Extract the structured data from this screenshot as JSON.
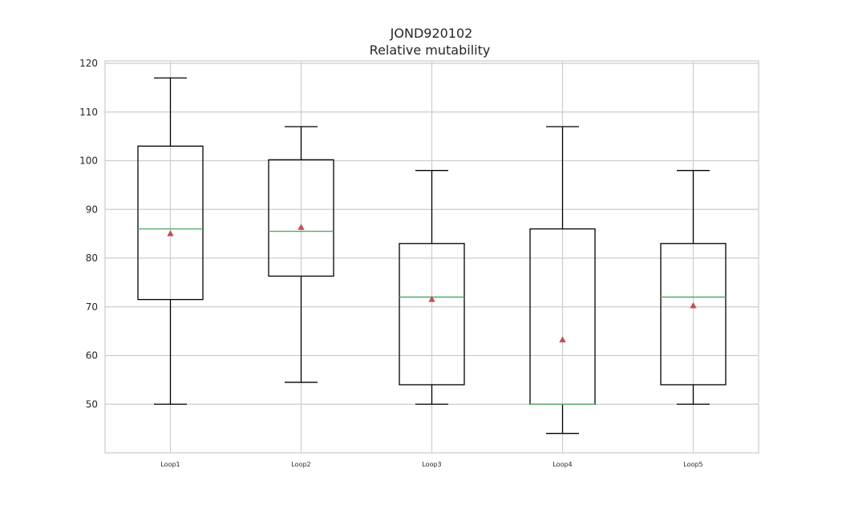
{
  "chart_data": {
    "type": "box",
    "title": "JOND920102",
    "subtitle": "Relative mutability",
    "xlabel": "",
    "ylabel": "",
    "ylim": [
      40,
      120.5
    ],
    "yticks": [
      50,
      60,
      70,
      80,
      90,
      100,
      110,
      120
    ],
    "grid": true,
    "categories": [
      "Loop1",
      "Loop2",
      "Loop3",
      "Loop4",
      "Loop5"
    ],
    "boxes": [
      {
        "name": "Loop1",
        "whisker_low": 50,
        "q1": 71.5,
        "median": 86,
        "q3": 103,
        "whisker_high": 117,
        "mean": 85
      },
      {
        "name": "Loop2",
        "whisker_low": 54.5,
        "q1": 76.3,
        "median": 85.5,
        "q3": 100.2,
        "whisker_high": 107,
        "mean": 86.3
      },
      {
        "name": "Loop3",
        "whisker_low": 50,
        "q1": 54,
        "median": 72,
        "q3": 83,
        "whisker_high": 98,
        "mean": 71.5
      },
      {
        "name": "Loop4",
        "whisker_low": 44,
        "q1": 50,
        "median": 50,
        "q3": 86,
        "whisker_high": 107,
        "mean": 63.2
      },
      {
        "name": "Loop5",
        "whisker_low": 50,
        "q1": 54,
        "median": 72,
        "q3": 83,
        "whisker_high": 98,
        "mean": 70.2
      }
    ],
    "colors": {
      "box": "#000000",
      "median": "#55a868",
      "mean": "#c44e52",
      "grid": "#cccccc",
      "frame": "#cccccc"
    }
  }
}
